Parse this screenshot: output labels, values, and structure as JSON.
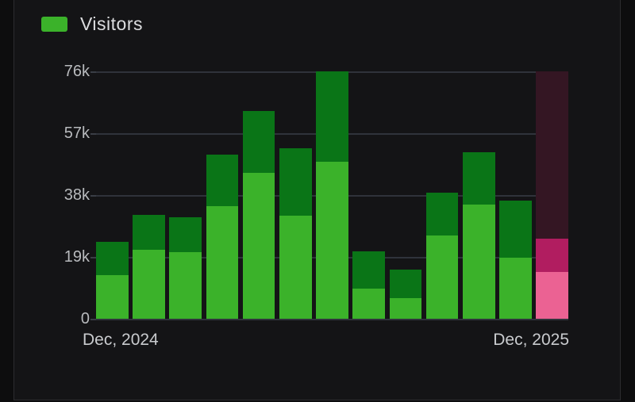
{
  "chart_data": {
    "type": "bar",
    "stacked": true,
    "title": "",
    "legend_label": "Visitors",
    "legend_position": "top-left",
    "grid": true,
    "unit": "thousands of visitors",
    "ylim": [
      0,
      76
    ],
    "y_tick_labels": [
      "76k",
      "57k",
      "38k",
      "19k",
      "0"
    ],
    "y_tick_values": [
      76,
      57,
      38,
      19,
      0
    ],
    "x_tick_labels": [
      "Dec, 2024",
      "Dec, 2025"
    ],
    "x_description": "13 monthly bars spanning Dec 2024 through Dec 2025; only first and last month labeled",
    "series_note": "Each bar is a stack of a light lower segment and a dark upper segment; final month (Dec 2025) is highlighted in pink with a translucent backdrop extending to the 76k top line",
    "bars": [
      {
        "x_index": 0,
        "lower": 13.4,
        "upper": 10.2,
        "total": 23.6,
        "state": "normal"
      },
      {
        "x_index": 1,
        "lower": 21.2,
        "upper": 10.7,
        "total": 31.9,
        "state": "normal"
      },
      {
        "x_index": 2,
        "lower": 20.5,
        "upper": 10.7,
        "total": 31.2,
        "state": "normal"
      },
      {
        "x_index": 3,
        "lower": 34.6,
        "upper": 15.8,
        "total": 50.4,
        "state": "normal"
      },
      {
        "x_index": 4,
        "lower": 44.8,
        "upper": 19.0,
        "total": 63.8,
        "state": "normal"
      },
      {
        "x_index": 5,
        "lower": 31.7,
        "upper": 20.7,
        "total": 52.4,
        "state": "normal"
      },
      {
        "x_index": 6,
        "lower": 48.2,
        "upper": 27.8,
        "total": 76.0,
        "state": "normal"
      },
      {
        "x_index": 7,
        "lower": 9.3,
        "upper": 11.4,
        "total": 20.7,
        "state": "normal"
      },
      {
        "x_index": 8,
        "lower": 6.3,
        "upper": 8.8,
        "total": 15.1,
        "state": "normal"
      },
      {
        "x_index": 9,
        "lower": 25.6,
        "upper": 13.1,
        "total": 38.7,
        "state": "normal"
      },
      {
        "x_index": 10,
        "lower": 35.1,
        "upper": 16.1,
        "total": 51.2,
        "state": "normal"
      },
      {
        "x_index": 11,
        "lower": 18.8,
        "upper": 17.5,
        "total": 36.3,
        "state": "normal"
      },
      {
        "x_index": 12,
        "lower": 14.4,
        "upper": 10.2,
        "total": 24.6,
        "state": "highlighted",
        "highlight_extends_to": 76
      }
    ],
    "colors": {
      "lower_segment": "#3bb22a",
      "upper_segment": "#0a7517",
      "highlight_lower": "#eb6293",
      "highlight_upper": "#b11d60",
      "highlight_backdrop": "#341623",
      "gridline": "#2f333b",
      "panel_background": "#141416",
      "outer_background": "#0d0d0e",
      "y_label_color": "#b8babd",
      "x_label_color": "#c9cbce",
      "legend_text_color": "#dcdddf"
    }
  }
}
